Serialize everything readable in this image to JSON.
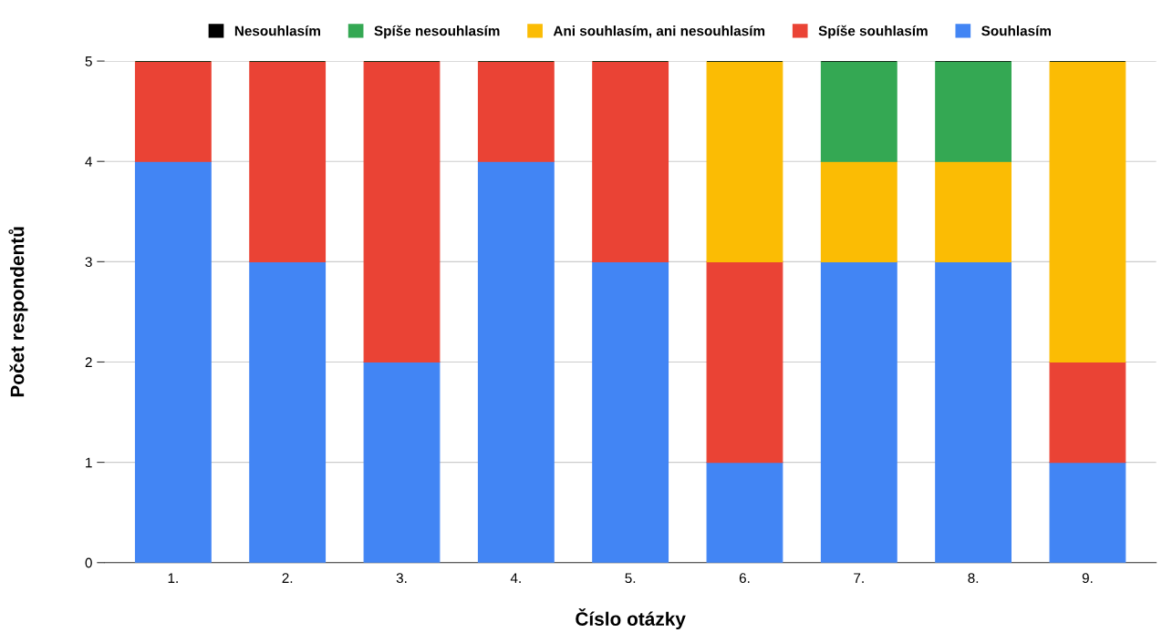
{
  "chart_data": {
    "type": "bar",
    "stacked": true,
    "xlabel": "Číslo otázky",
    "ylabel": "Počet respondentů",
    "categories": [
      "1.",
      "2.",
      "3.",
      "4.",
      "5.",
      "6.",
      "7.",
      "8.",
      "9."
    ],
    "series": [
      {
        "name": "Souhlasím",
        "color": "#4285f4",
        "values": [
          4,
          3,
          2,
          4,
          3,
          1,
          3,
          3,
          1
        ]
      },
      {
        "name": "Spíše souhlasím",
        "color": "#ea4335",
        "values": [
          1,
          2,
          3,
          1,
          2,
          2,
          0,
          0,
          1
        ]
      },
      {
        "name": "Ani souhlasím, ani nesouhlasím",
        "color": "#fbbc04",
        "values": [
          0,
          0,
          0,
          0,
          0,
          2,
          1,
          1,
          3
        ]
      },
      {
        "name": "Spíše nesouhlasím",
        "color": "#34a853",
        "values": [
          0,
          0,
          0,
          0,
          0,
          0,
          1,
          1,
          0
        ]
      },
      {
        "name": "Nesouhlasím",
        "color": "#000000",
        "values": [
          0,
          0,
          0,
          0,
          0,
          0,
          0,
          0,
          0
        ]
      }
    ],
    "ylim": [
      0,
      5
    ],
    "yticks": [
      0,
      1,
      2,
      3,
      4,
      5
    ],
    "grid": "y",
    "legend": "top"
  }
}
